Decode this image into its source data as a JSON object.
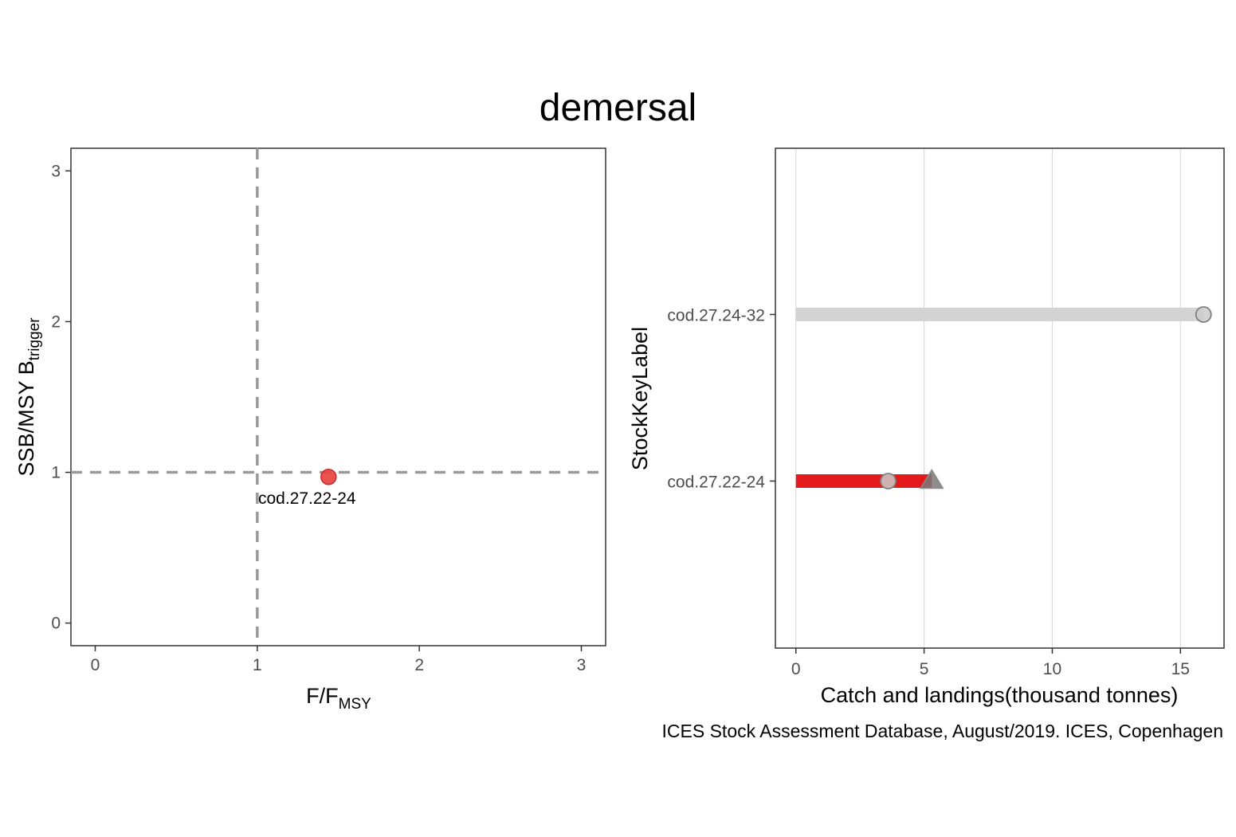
{
  "title": "demersal",
  "caption": "ICES Stock Assessment Database, August/2019. ICES, Copenhagen",
  "chart_data": [
    {
      "type": "scatter",
      "xlabel": {
        "main": "F/F",
        "sub": "MSY"
      },
      "ylabel": {
        "main": "SSB/MSY B",
        "sub": "trigger"
      },
      "xlim": [
        -0.15,
        3.15
      ],
      "ylim": [
        -0.15,
        3.15
      ],
      "x_ticks": [
        "0",
        "1",
        "2",
        "3"
      ],
      "y_ticks": [
        "0",
        "1",
        "2",
        "3"
      ],
      "reference_lines": {
        "x": 1,
        "y": 1
      },
      "points": [
        {
          "label": "cod.27.22-24",
          "x": 1.44,
          "y": 0.97,
          "color": "#e8413c"
        }
      ],
      "grid": false
    },
    {
      "type": "bar",
      "orientation": "horizontal",
      "xlabel": "Catch and landings(thousand tonnes)",
      "ylabel": "StockKeyLabel",
      "xlim": [
        -0.8,
        16.7
      ],
      "x_ticks": [
        "0",
        "5",
        "10",
        "15"
      ],
      "categories": [
        "cod.27.24-32",
        "cod.27.22-24"
      ],
      "bars": [
        {
          "label": "cod.27.24-32",
          "value": 15.9,
          "color": "#d3d3d3",
          "circle": 15.9,
          "triangle": null
        },
        {
          "label": "cod.27.22-24",
          "value": 5.3,
          "color": "#e31a1c",
          "circle": 3.6,
          "triangle": 5.3
        }
      ],
      "grid": "vertical"
    }
  ]
}
